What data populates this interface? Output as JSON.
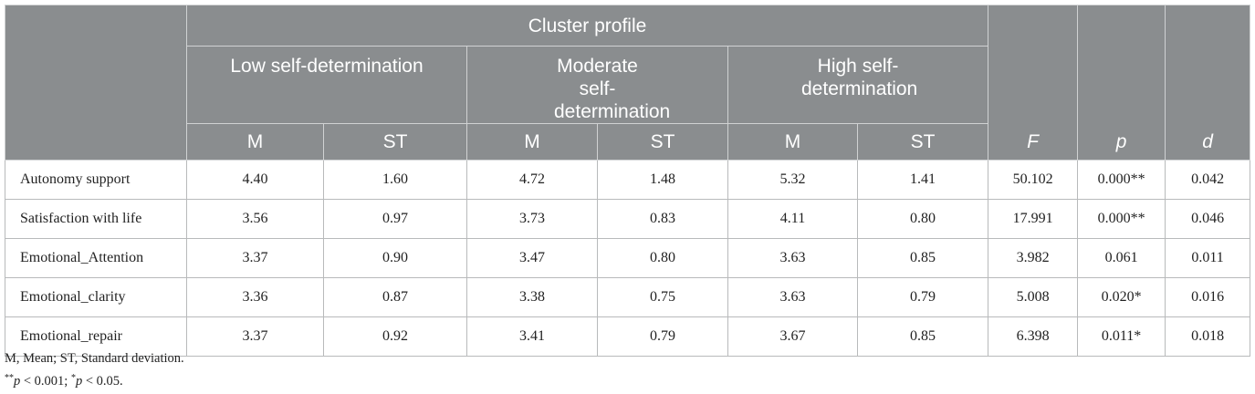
{
  "table": {
    "cluster_header": "Cluster profile",
    "groups": [
      "Low self-determination",
      "Moderate self-determination",
      "High self-determination"
    ],
    "sub_headers": [
      "M",
      "ST",
      "M",
      "ST",
      "M",
      "ST"
    ],
    "stat_headers": [
      "F",
      "p",
      "d"
    ],
    "rows": [
      {
        "label": "Autonomy support",
        "values": [
          "4.40",
          "1.60",
          "4.72",
          "1.48",
          "5.32",
          "1.41",
          "50.102",
          "0.000**",
          "0.042"
        ]
      },
      {
        "label": "Satisfaction with life",
        "values": [
          "3.56",
          "0.97",
          "3.73",
          "0.83",
          "4.11",
          "0.80",
          "17.991",
          "0.000**",
          "0.046"
        ]
      },
      {
        "label": "Emotional_Attention",
        "values": [
          "3.37",
          "0.90",
          "3.47",
          "0.80",
          "3.63",
          "0.85",
          "3.982",
          "0.061",
          "0.011"
        ]
      },
      {
        "label": "Emotional_clarity",
        "values": [
          "3.36",
          "0.87",
          "3.38",
          "0.75",
          "3.63",
          "0.79",
          "5.008",
          "0.020*",
          "0.016"
        ]
      },
      {
        "label": "Emotional_repair",
        "values": [
          "3.37",
          "0.92",
          "3.41",
          "0.79",
          "3.67",
          "0.85",
          "6.398",
          "0.011*",
          "0.018"
        ]
      }
    ]
  },
  "notes": {
    "abbrev": "M, Mean; ST, Standard deviation.",
    "sig_a_mark": "**",
    "sig_a_p": "p",
    "sig_a_rest": " < 0.001; ",
    "sig_b_mark": "*",
    "sig_b_p": "p",
    "sig_b_rest": " < 0.05."
  }
}
